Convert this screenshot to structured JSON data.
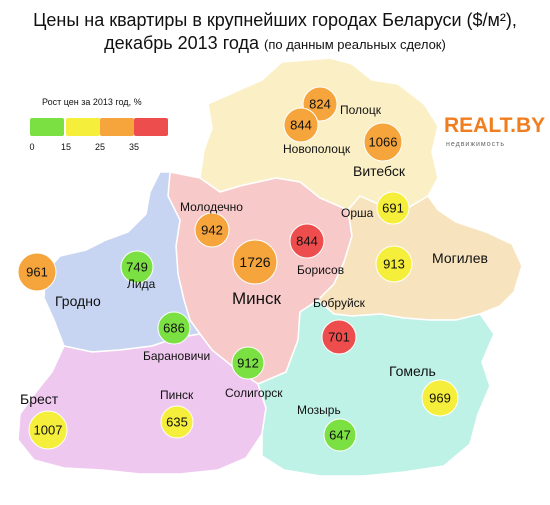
{
  "title": {
    "line1": "Цены на квартиры в крупнейших городах Беларуси ($/м²),",
    "line2_main": "декабрь 2013 года",
    "line2_note": "(по данным реальных сделок)"
  },
  "legend": {
    "title": "Рост цен за 2013 год, %",
    "ticks": [
      "0",
      "15",
      "25",
      "35"
    ],
    "colors": [
      "#7be042",
      "#f5ee3a",
      "#f5a53c",
      "#ee4d4d"
    ]
  },
  "brand": {
    "name": "REALT.BY",
    "tagline": "недвижимость",
    "color": "#f07d1e"
  },
  "regions": [
    {
      "name": "Minsk region",
      "color": "#f7c9c9"
    },
    {
      "name": "Vitebsk region",
      "color": "#fbefc6"
    },
    {
      "name": "Grodno region",
      "color": "#c7d5f2"
    },
    {
      "name": "Mogilev region",
      "color": "#f7e4bf"
    },
    {
      "name": "Brest region",
      "color": "#efc8ef"
    },
    {
      "name": "Gomel region",
      "color": "#bff2e6"
    }
  ],
  "cities": [
    {
      "name": "Полоцк",
      "price": "824",
      "color": "#f5a53c"
    },
    {
      "name": "Новополоцк",
      "price": "844",
      "color": "#f5a53c"
    },
    {
      "name": "Витебск",
      "price": "1066",
      "color": "#f5a53c"
    },
    {
      "name": "Молодечно",
      "price": "942",
      "color": "#f5a53c"
    },
    {
      "name": "Орша",
      "price": "691",
      "color": "#f5ee3a"
    },
    {
      "name": "Гродно",
      "price": "961",
      "color": "#f5a53c"
    },
    {
      "name": "Лида",
      "price": "749",
      "color": "#7be042"
    },
    {
      "name": "Минск",
      "price": "1726",
      "color": "#f5a53c"
    },
    {
      "name": "Борисов",
      "price": "844",
      "color": "#ee4d4d"
    },
    {
      "name": "Могилев",
      "price": "913",
      "color": "#f5ee3a"
    },
    {
      "name": "Барановичи",
      "price": "686",
      "color": "#7be042"
    },
    {
      "name": "Бобруйск",
      "price": "701",
      "color": "#ee4d4d"
    },
    {
      "name": "Солигорск",
      "price": "912",
      "color": "#7be042"
    },
    {
      "name": "Брест",
      "price": "1007",
      "color": "#f5ee3a"
    },
    {
      "name": "Пинск",
      "price": "635",
      "color": "#f5ee3a"
    },
    {
      "name": "Гомель",
      "price": "969",
      "color": "#f5ee3a"
    },
    {
      "name": "Мозырь",
      "price": "647",
      "color": "#7be042"
    }
  ]
}
